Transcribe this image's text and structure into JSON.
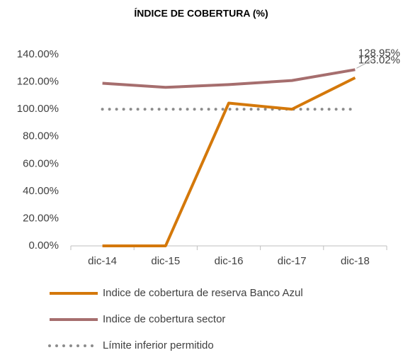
{
  "chart_data": {
    "type": "line",
    "title": "ÍNDICE DE COBERTURA (%)",
    "categories": [
      "dic-14",
      "dic-15",
      "dic-16",
      "dic-17",
      "dic-18"
    ],
    "series": [
      {
        "name": "Indice de cobertura de reserva Banco Azul",
        "color": "#d4780a",
        "style": "solid",
        "values": [
          0,
          0,
          104.5,
          100,
          123.02
        ],
        "value_labels": [
          null,
          null,
          null,
          null,
          "123.02%"
        ]
      },
      {
        "name": "Indice de cobertura sector",
        "color": "#a66e6e",
        "style": "solid",
        "values": [
          119,
          116,
          118,
          121,
          128.95
        ],
        "value_labels": [
          null,
          null,
          null,
          null,
          "128.95%"
        ]
      },
      {
        "name": "Límite inferior permitido",
        "color": "#8c8c8c",
        "style": "dotted",
        "values": [
          100,
          100,
          100,
          100,
          100
        ]
      }
    ],
    "ylim": [
      0,
      140
    ],
    "yticks": [
      {
        "value": 0,
        "label": "0.00%"
      },
      {
        "value": 20,
        "label": "20.00%"
      },
      {
        "value": 40,
        "label": "40.00%"
      },
      {
        "value": 60,
        "label": "60.00%"
      },
      {
        "value": 80,
        "label": "80.00%"
      },
      {
        "value": 100,
        "label": "100.00%"
      },
      {
        "value": 120,
        "label": "120.00%"
      },
      {
        "value": 140,
        "label": "140.00%"
      }
    ],
    "grid": false,
    "legend": "bottom"
  }
}
